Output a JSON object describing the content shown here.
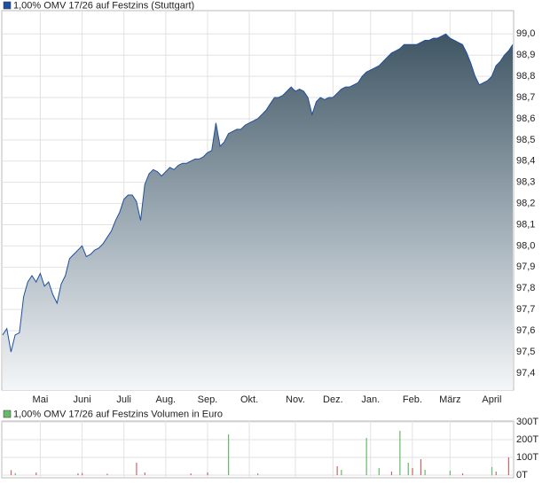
{
  "chart_data": [
    {
      "type": "area",
      "categories": [
        null,
        null,
        null,
        null,
        null,
        null,
        null,
        null,
        null,
        "Mai",
        null,
        null,
        null,
        null,
        null,
        null,
        null,
        null,
        null,
        "Juni",
        null,
        null,
        null,
        null,
        null,
        null,
        null,
        null,
        null,
        "Juli",
        null,
        null,
        null,
        null,
        null,
        null,
        null,
        null,
        null,
        "Aug.",
        null,
        null,
        null,
        null,
        null,
        null,
        null,
        null,
        null,
        "Sep.",
        null,
        null,
        null,
        null,
        null,
        null,
        null,
        null,
        null,
        "Okt.",
        null,
        null,
        null,
        null,
        null,
        null,
        null,
        null,
        null,
        null,
        "Nov.",
        null,
        null,
        null,
        null,
        null,
        null,
        null,
        null,
        "Dez.",
        null,
        null,
        null,
        null,
        null,
        null,
        null,
        null,
        "Jan.",
        null,
        null,
        null,
        null,
        null,
        null,
        null,
        null,
        null,
        "Feb.",
        null,
        null,
        null,
        null,
        null,
        null,
        null,
        null,
        "März",
        null,
        null,
        null,
        null,
        null,
        null,
        null,
        null,
        null,
        "April",
        null,
        null,
        null,
        null,
        null
      ],
      "series": [
        {
          "name": "1,00% OMV 17/26 auf Festzins (Stuttgart)",
          "color": "#1f4fa0",
          "values": [
            97.58,
            97.61,
            97.5,
            97.58,
            97.59,
            97.76,
            97.83,
            97.86,
            97.83,
            97.87,
            97.81,
            97.83,
            97.77,
            97.73,
            97.82,
            97.86,
            97.94,
            97.96,
            97.98,
            98.0,
            97.95,
            97.96,
            97.98,
            97.99,
            98.01,
            98.04,
            98.07,
            98.12,
            98.16,
            98.22,
            98.24,
            98.24,
            98.21,
            98.12,
            98.29,
            98.34,
            98.36,
            98.35,
            98.33,
            98.35,
            98.37,
            98.36,
            98.38,
            98.39,
            98.39,
            98.4,
            98.41,
            98.41,
            98.42,
            98.44,
            98.45,
            98.58,
            98.47,
            98.49,
            98.53,
            98.54,
            98.55,
            98.55,
            98.57,
            98.58,
            98.59,
            98.6,
            98.62,
            98.64,
            98.67,
            98.7,
            98.7,
            98.71,
            98.73,
            98.75,
            98.73,
            98.74,
            98.73,
            98.7,
            98.62,
            98.68,
            98.7,
            98.69,
            98.7,
            98.7,
            98.72,
            98.74,
            98.75,
            98.75,
            98.76,
            98.77,
            98.8,
            98.82,
            98.83,
            98.84,
            98.85,
            98.87,
            98.89,
            98.91,
            98.92,
            98.93,
            98.95,
            98.95,
            98.95,
            98.95,
            98.96,
            98.97,
            98.97,
            98.98,
            98.98,
            98.99,
            99.0,
            98.98,
            98.97,
            98.96,
            98.95,
            98.91,
            98.86,
            98.8,
            98.76,
            98.77,
            98.78,
            98.8,
            98.85,
            98.87,
            98.9,
            98.92,
            98.95
          ]
        }
      ],
      "ylim": [
        97.32,
        99.11
      ],
      "yticks": [
        {
          "value": 97.4,
          "label": "97,4"
        },
        {
          "value": 97.5,
          "label": "97,5"
        },
        {
          "value": 97.6,
          "label": "97,6"
        },
        {
          "value": 97.7,
          "label": "97,7"
        },
        {
          "value": 97.8,
          "label": "97,8"
        },
        {
          "value": 97.9,
          "label": "97,9"
        },
        {
          "value": 98.0,
          "label": "98,0"
        },
        {
          "value": 98.1,
          "label": "98,1"
        },
        {
          "value": 98.2,
          "label": "98,2"
        },
        {
          "value": 98.3,
          "label": "98,3"
        },
        {
          "value": 98.4,
          "label": "98,4"
        },
        {
          "value": 98.5,
          "label": "98,5"
        },
        {
          "value": 98.6,
          "label": "98,6"
        },
        {
          "value": 98.7,
          "label": "98,7"
        },
        {
          "value": 98.8,
          "label": "98,8"
        },
        {
          "value": 98.9,
          "label": "98,9"
        },
        {
          "value": 99.0,
          "label": "99,0"
        }
      ],
      "grid": true
    },
    {
      "type": "bar",
      "series": [
        {
          "name": "1,00% OMV 17/26 auf Festzins Volumen in Euro",
          "color": "#66bb66",
          "values": [
            null,
            null,
            28,
            12,
            null,
            null,
            null,
            null,
            15,
            null,
            null,
            null,
            null,
            null,
            null,
            null,
            null,
            null,
            10,
            12,
            null,
            null,
            null,
            null,
            null,
            8,
            null,
            null,
            null,
            null,
            null,
            null,
            70,
            null,
            15,
            null,
            null,
            null,
            null,
            null,
            null,
            null,
            null,
            null,
            null,
            10,
            null,
            null,
            null,
            15,
            null,
            null,
            null,
            null,
            230,
            null,
            null,
            null,
            null,
            null,
            null,
            10,
            null,
            null,
            null,
            null,
            null,
            null,
            null,
            null,
            null,
            null,
            null,
            null,
            null,
            null,
            null,
            null,
            null,
            null,
            50,
            30,
            null,
            null,
            null,
            null,
            null,
            210,
            null,
            null,
            40,
            null,
            null,
            20,
            null,
            250,
            null,
            70,
            40,
            null,
            90,
            30,
            null,
            null,
            null,
            null,
            null,
            25,
            null,
            null,
            10,
            null,
            null,
            null,
            null,
            null,
            null,
            45,
            20,
            null,
            null,
            100,
            null
          ],
          "bar_colors": [
            null,
            null,
            "#cc6666",
            "#66bb66",
            null,
            null,
            null,
            null,
            "#cc6666",
            null,
            null,
            null,
            null,
            null,
            null,
            null,
            null,
            null,
            "#cc6666",
            "#cc6666",
            null,
            null,
            null,
            null,
            null,
            "#cc6666",
            null,
            null,
            null,
            null,
            null,
            null,
            "#cc6666",
            null,
            "#cc6666",
            null,
            null,
            null,
            null,
            null,
            null,
            null,
            null,
            null,
            null,
            "#cc6666",
            null,
            null,
            null,
            "#cc6666",
            null,
            null,
            null,
            null,
            "#66bb66",
            null,
            null,
            null,
            null,
            null,
            null,
            "#66bb66",
            null,
            null,
            null,
            null,
            null,
            null,
            null,
            null,
            null,
            null,
            null,
            null,
            null,
            null,
            null,
            null,
            null,
            null,
            "#cc6666",
            "#66bb66",
            null,
            null,
            null,
            null,
            null,
            "#66bb66",
            null,
            null,
            "#66bb66",
            null,
            null,
            "#cc6666",
            null,
            "#66bb66",
            null,
            "#66bb66",
            "#cc6666",
            null,
            "#cc6666",
            "#66bb66",
            null,
            null,
            null,
            null,
            null,
            "#66bb66",
            null,
            null,
            "#cc6666",
            null,
            null,
            null,
            null,
            null,
            null,
            "#66bb66",
            "#cc6666",
            null,
            null,
            "#cc6666",
            null
          ]
        }
      ],
      "ylim": [
        0,
        300
      ],
      "yticks": [
        {
          "value": 0,
          "label": "0T"
        },
        {
          "value": 100,
          "label": "100T"
        },
        {
          "value": 200,
          "label": "200T"
        },
        {
          "value": 300,
          "label": "300T"
        }
      ],
      "grid": true
    }
  ]
}
